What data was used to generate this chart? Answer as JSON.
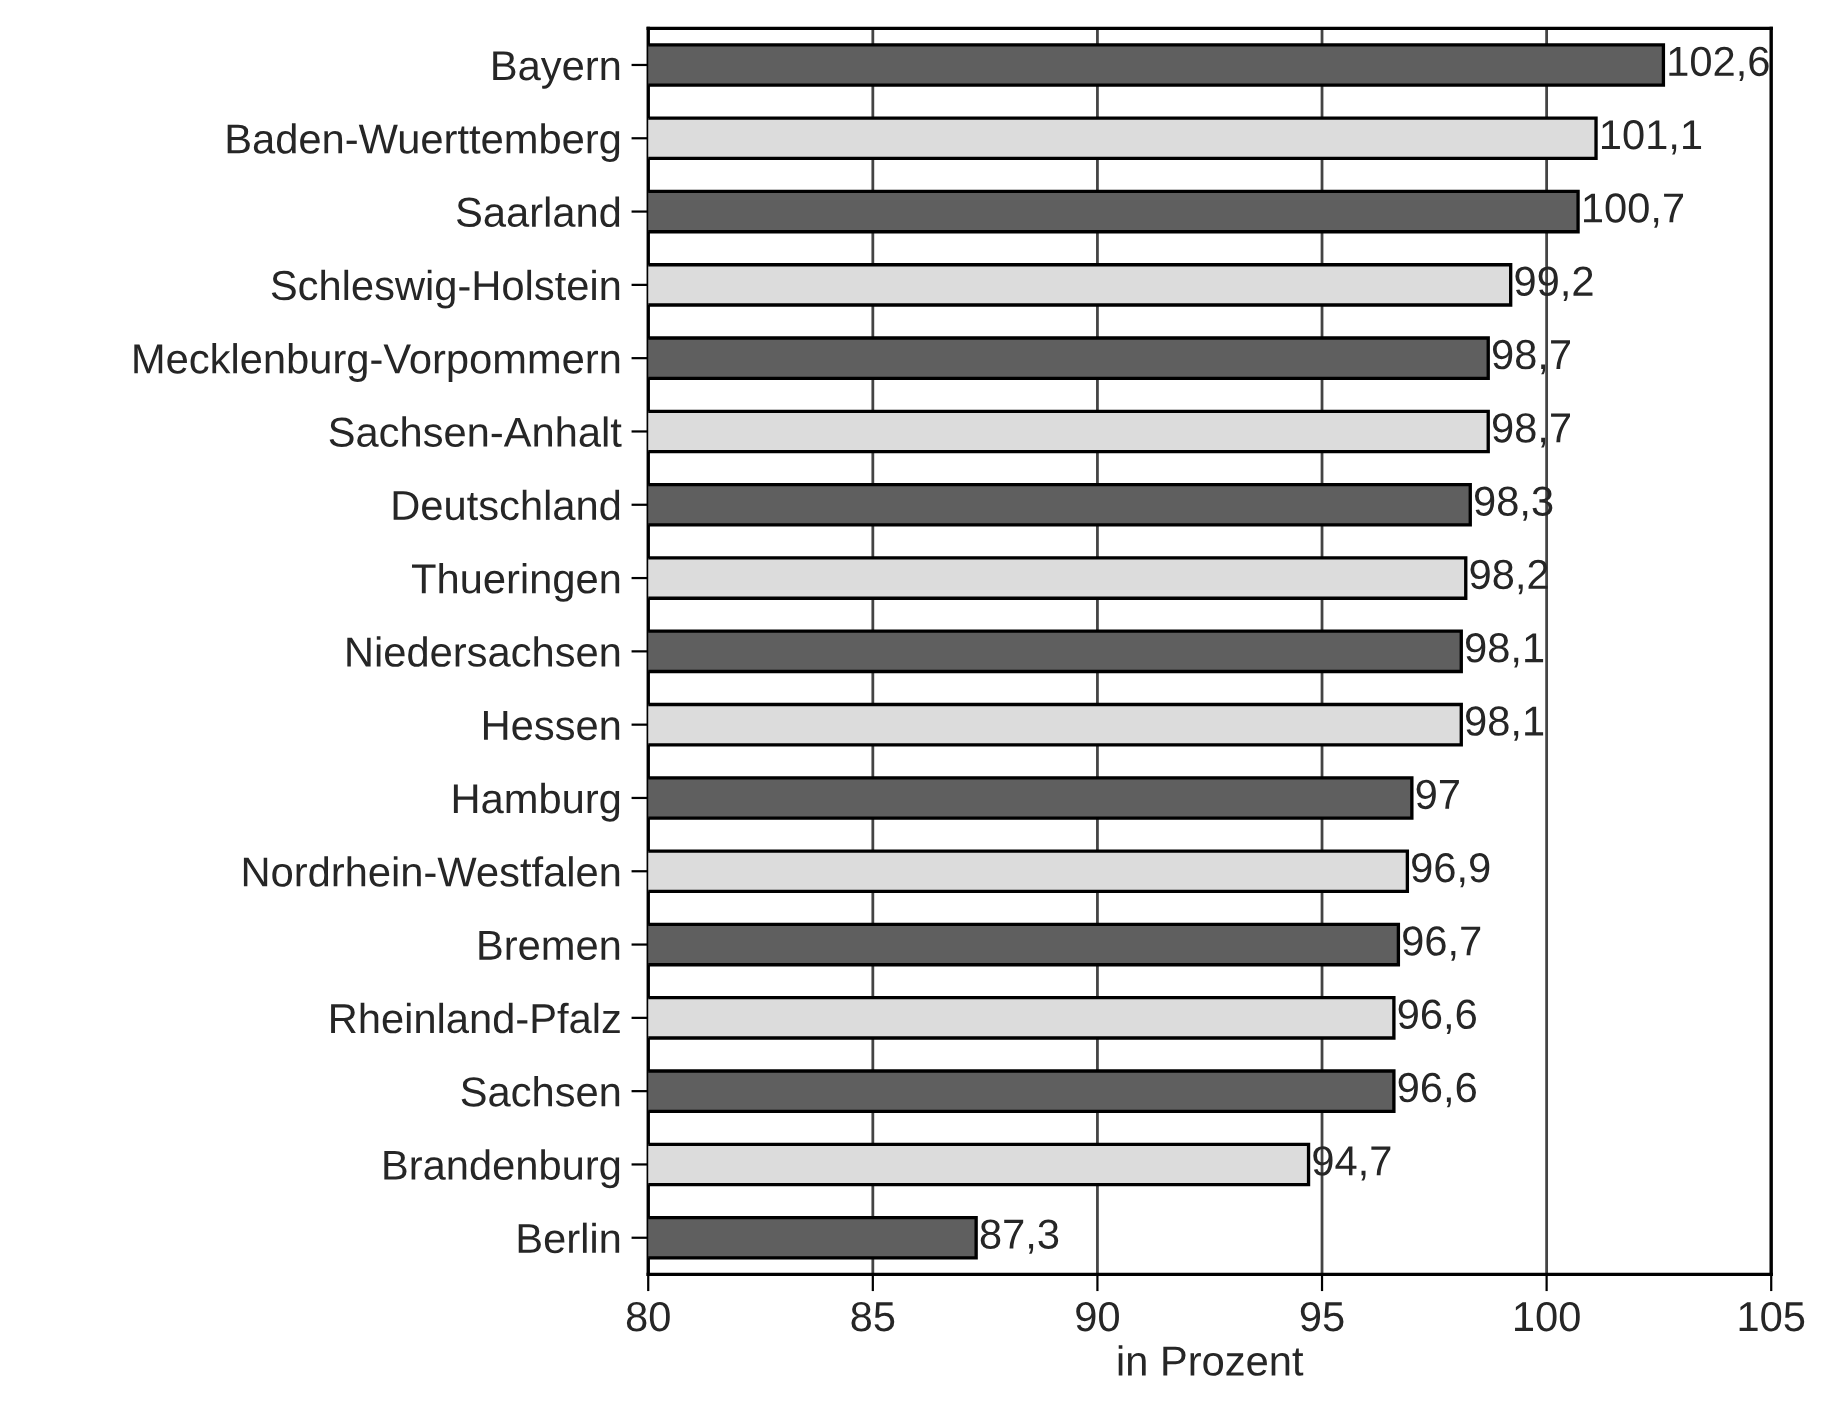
{
  "chart_data": {
    "type": "bar",
    "orientation": "horizontal",
    "xlabel": "in Prozent",
    "categories": [
      "Bayern",
      "Baden-Wuerttemberg",
      "Saarland",
      "Schleswig-Holstein",
      "Mecklenburg-Vorpommern",
      "Sachsen-Anhalt",
      "Deutschland",
      "Thueringen",
      "Niedersachsen",
      "Hessen",
      "Hamburg",
      "Nordrhein-Westfalen",
      "Bremen",
      "Rheinland-Pfalz",
      "Sachsen",
      "Brandenburg",
      "Berlin"
    ],
    "values": [
      102.6,
      101.1,
      100.7,
      99.2,
      98.7,
      98.7,
      98.3,
      98.2,
      98.1,
      98.1,
      97,
      96.9,
      96.7,
      96.6,
      96.6,
      94.7,
      87.3
    ],
    "value_labels": [
      "102,6",
      "101,1",
      "100,7",
      "99,2",
      "98,7",
      "98,7",
      "98,3",
      "98,2",
      "98,1",
      "98,1",
      "97",
      "96,9",
      "96,7",
      "96,6",
      "96,6",
      "94,7",
      "87,3"
    ],
    "colors": [
      "#5f5f5f",
      "#dcdcdc",
      "#5f5f5f",
      "#dcdcdc",
      "#5f5f5f",
      "#dcdcdc",
      "#5f5f5f",
      "#dcdcdc",
      "#5f5f5f",
      "#dcdcdc",
      "#5f5f5f",
      "#dcdcdc",
      "#5f5f5f",
      "#dcdcdc",
      "#5f5f5f",
      "#dcdcdc",
      "#5f5f5f"
    ],
    "xlim": [
      80,
      105
    ],
    "xticks": [
      80,
      85,
      90,
      95,
      100,
      105
    ],
    "grid": "x"
  }
}
